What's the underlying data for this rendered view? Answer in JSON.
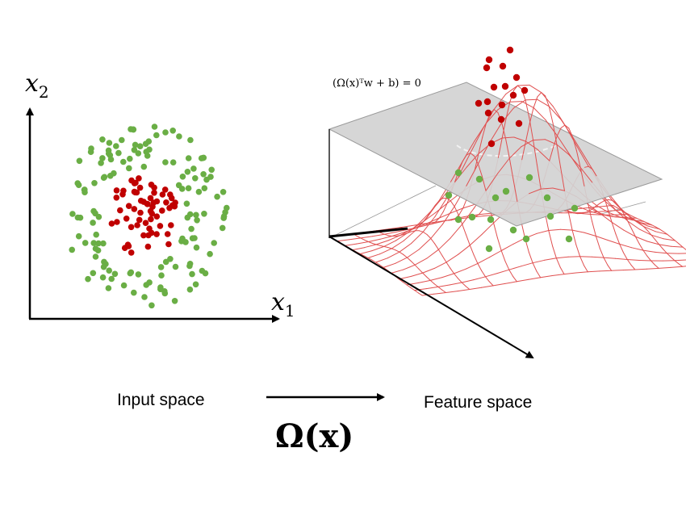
{
  "input_space": {
    "x_axis_label": "x",
    "x_axis_subscript": "1",
    "y_axis_label": "x",
    "y_axis_subscript": "2",
    "caption": "Input space",
    "class_colors": {
      "outer": "#6aae45",
      "inner": "#c00000"
    }
  },
  "feature_space": {
    "caption": "Feature space",
    "hyperplane_equation": "(Ω(x)ᵀw + b) = 0",
    "surface_color": "#e05050",
    "plane_color": "#d3d3d3"
  },
  "mapping": {
    "label": "Ω(x)"
  }
}
